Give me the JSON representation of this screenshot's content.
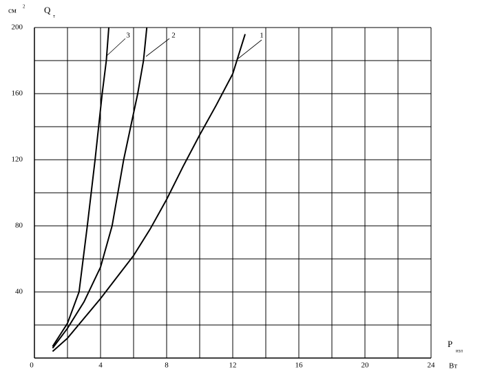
{
  "chart_data": {
    "type": "line",
    "y_label": {
      "unit": "см",
      "unit_exp": "2",
      "symbol": "Q",
      "subscript": "т"
    },
    "x_label": {
      "symbol": "P",
      "subscript": "изл",
      "unit": "Вт"
    },
    "xlim": [
      0,
      24
    ],
    "xticks": [
      0,
      4,
      8,
      12,
      16,
      20,
      24
    ],
    "ylim": [
      0,
      200
    ],
    "yticks": [
      40,
      80,
      120,
      160,
      200
    ],
    "grid": true,
    "color": "#000000",
    "series": [
      {
        "name": "1",
        "color": "#000000",
        "x": [
          1.1,
          2,
          3,
          4,
          5,
          6,
          7,
          8,
          9,
          10,
          11,
          12,
          12.75
        ],
        "values": [
          4,
          12,
          24,
          36,
          49,
          62,
          78,
          96,
          116,
          135,
          153,
          172,
          196
        ]
      },
      {
        "name": "2",
        "color": "#000000",
        "x": [
          1.1,
          2,
          3,
          4,
          4.7,
          5.4,
          6.25,
          6.6,
          6.8
        ],
        "values": [
          6,
          18,
          34,
          55,
          80,
          120,
          160,
          180,
          200
        ]
      },
      {
        "name": "3",
        "color": "#000000",
        "x": [
          1.1,
          2,
          2.7,
          3.2,
          3.67,
          4.1,
          4.35,
          4.5
        ],
        "values": [
          7,
          21,
          40,
          80,
          120,
          160,
          180,
          200
        ]
      }
    ]
  }
}
